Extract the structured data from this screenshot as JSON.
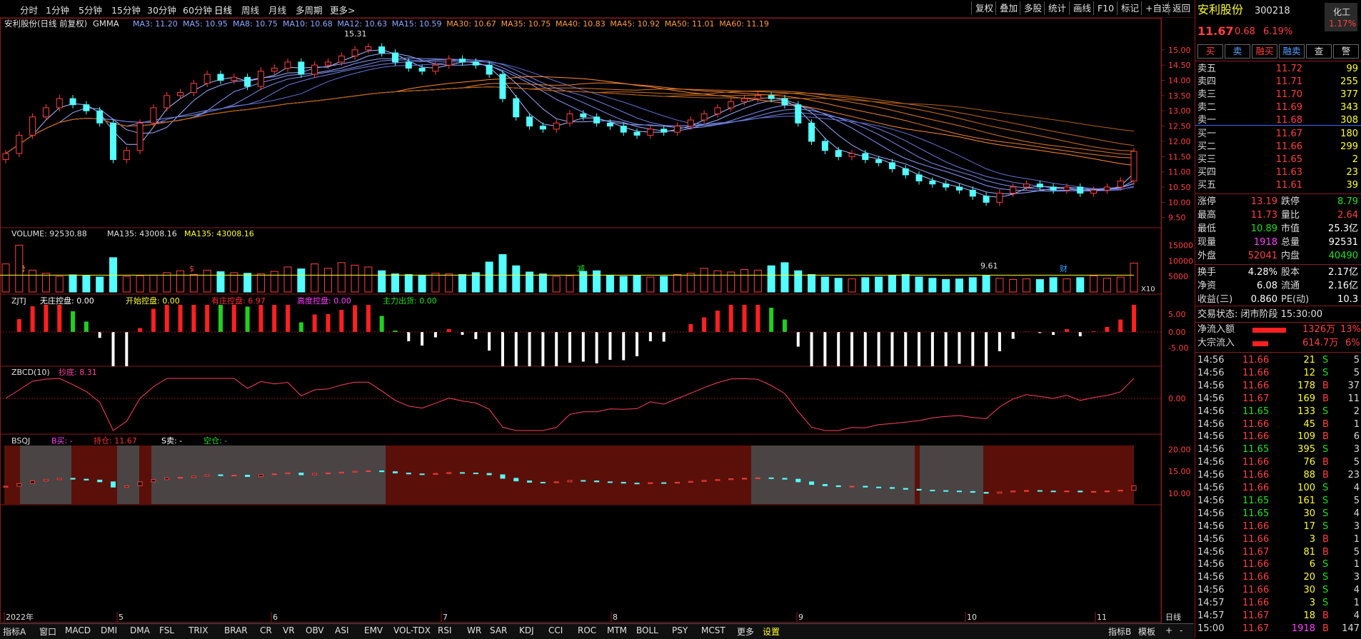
{
  "toolbar": {
    "periods": [
      "分时",
      "1分钟",
      "5分钟",
      "15分钟",
      "30分钟",
      "60分钟",
      "日线",
      "周线",
      "月线",
      "多周期",
      "更多>"
    ],
    "right_buttons": [
      "复权",
      "叠加",
      "多股",
      "统计",
      "画线",
      "F10",
      "标记",
      "+自选",
      "返回"
    ]
  },
  "main_panel": {
    "title": "安利股份(日线 前复权)",
    "indicator": "GMMA",
    "ma_labels": [
      "MA3: 11.20",
      "MA5: 10.95",
      "MA8: 10.75",
      "MA10: 10.68",
      "MA12: 10.63",
      "MA15: 10.59",
      "MA30: 10.67",
      "MA35: 10.75",
      "MA40: 10.83",
      "MA45: 10.92",
      "MA50: 11.01",
      "MA60: 11.19"
    ],
    "high_marker": "15.31",
    "low_marker": "9.61",
    "markers": [
      "榜",
      "$",
      "减",
      "财"
    ],
    "y_ticks": [
      "15.00",
      "14.50",
      "14.00",
      "13.50",
      "13.00",
      "12.50",
      "12.00",
      "11.50",
      "11.00",
      "10.50",
      "10.00",
      "9.50"
    ]
  },
  "volume_panel": {
    "title": "VOLUME: 92530.88",
    "ma1": "MA135: 43008.16",
    "ma2": "MA135: 43008.16",
    "y_ticks": [
      "15000",
      "10000",
      "5000"
    ],
    "unit": "X10"
  },
  "zjtj_panel": {
    "title": "ZJTJ",
    "labels": [
      {
        "text": "无庄控盘: 0.00",
        "color": "#ffffff"
      },
      {
        "text": "开始控盘: 0.00",
        "color": "#ffff30"
      },
      {
        "text": "有庄控盘: 6.97",
        "color": "#ff3030"
      },
      {
        "text": "高度控盘: 0.00",
        "color": "#ff40ff"
      },
      {
        "text": "主力出货: 0.00",
        "color": "#20e020"
      }
    ],
    "y_ticks": [
      "5.00",
      "0.00",
      "-5.00"
    ]
  },
  "zbcd_panel": {
    "title": "ZBCD(10)",
    "label": "抄底: 8.31",
    "y_ticks": [
      "0.00"
    ]
  },
  "bsqj_panel": {
    "title": "BSQJ",
    "labels": [
      {
        "text": "B买: -",
        "color": "#ff40ff"
      },
      {
        "text": "持仓: 11.67",
        "color": "#ff3030"
      },
      {
        "text": "S卖: -",
        "color": "#ffffff"
      },
      {
        "text": "空仓: -",
        "color": "#20e020"
      }
    ],
    "y_ticks": [
      "20.00",
      "15.00",
      "10.00"
    ]
  },
  "date_axis": {
    "labels": [
      "2022年",
      "5",
      "6",
      "7",
      "8",
      "9",
      "10",
      "11"
    ],
    "right": "日线"
  },
  "bottom_tabs": [
    "指标A",
    "窗口",
    "MACD",
    "DMI",
    "DMA",
    "FSL",
    "TRIX",
    "BRAR",
    "CR",
    "VR",
    "OBV",
    "ASI",
    "EMV",
    "VOL-TDX",
    "RSI",
    "WR",
    "SAR",
    "KDJ",
    "CCI",
    "ROC",
    "MTM",
    "BOLL",
    "PSY",
    "MCST",
    "更多",
    "设置"
  ],
  "bottom_right": [
    "指标B",
    "模板",
    "+",
    "-"
  ],
  "quote": {
    "name": "安利股份",
    "code": "300218",
    "sector": "化工",
    "sector_pct": "1.17%",
    "price": "11.67",
    "change": "0.68",
    "pct": "6.19%",
    "trade_buttons": [
      "买",
      "卖",
      "融买",
      "融卖",
      "查",
      "警"
    ],
    "asks": [
      {
        "label": "卖五",
        "price": "11.72",
        "vol": "99"
      },
      {
        "label": "卖四",
        "price": "11.71",
        "vol": "255"
      },
      {
        "label": "卖三",
        "price": "11.70",
        "vol": "377"
      },
      {
        "label": "卖二",
        "price": "11.69",
        "vol": "343"
      },
      {
        "label": "卖一",
        "price": "11.68",
        "vol": "308"
      }
    ],
    "bids": [
      {
        "label": "买一",
        "price": "11.67",
        "vol": "180"
      },
      {
        "label": "买二",
        "price": "11.66",
        "vol": "299"
      },
      {
        "label": "买三",
        "price": "11.65",
        "vol": "2"
      },
      {
        "label": "买四",
        "price": "11.63",
        "vol": "23"
      },
      {
        "label": "买五",
        "price": "11.61",
        "vol": "39"
      }
    ],
    "stats": [
      [
        {
          "l": "涨停",
          "v": "13.19",
          "c": "red"
        },
        {
          "l": "跌停",
          "v": "8.79",
          "c": "grn"
        }
      ],
      [
        {
          "l": "最高",
          "v": "11.73",
          "c": "red"
        },
        {
          "l": "量比",
          "v": "2.64",
          "c": "red"
        }
      ],
      [
        {
          "l": "最低",
          "v": "10.89",
          "c": "grn"
        },
        {
          "l": "市值",
          "v": "25.3亿",
          "c": "wht"
        }
      ],
      [
        {
          "l": "现量",
          "v": "1918",
          "c": "mag"
        },
        {
          "l": "总量",
          "v": "92531",
          "c": "wht"
        }
      ],
      [
        {
          "l": "外盘",
          "v": "52041",
          "c": "red"
        },
        {
          "l": "内盘",
          "v": "40490",
          "c": "grn"
        }
      ]
    ],
    "stats2": [
      [
        {
          "l": "换手",
          "v": "4.28%",
          "c": "wht"
        },
        {
          "l": "股本",
          "v": "2.17亿",
          "c": "wht"
        }
      ],
      [
        {
          "l": "净资",
          "v": "6.08",
          "c": "wht"
        },
        {
          "l": "流通",
          "v": "2.16亿",
          "c": "wht"
        }
      ],
      [
        {
          "l": "收益(三)",
          "v": "0.860",
          "c": "wht"
        },
        {
          "l": "PE(动)",
          "v": "10.3",
          "c": "wht"
        }
      ]
    ],
    "trade_status": "交易状态: 闭市阶段 15:30:00",
    "net_inflow_label": "净流入额",
    "net_inflow": "1326万",
    "net_inflow_pct": "13%",
    "net_inflow_bar": 0.13,
    "block_label": "大宗流入",
    "block_inflow": "614.7万",
    "block_pct": "6%",
    "block_bar": 0.06,
    "ticks": [
      [
        "14:56",
        "11.66",
        "21",
        "S",
        "5"
      ],
      [
        "14:56",
        "11.66",
        "12",
        "S",
        "5"
      ],
      [
        "14:56",
        "11.66",
        "178",
        "B",
        "37"
      ],
      [
        "14:56",
        "11.67",
        "169",
        "B",
        "11"
      ],
      [
        "14:56",
        "11.65",
        "133",
        "S",
        "2"
      ],
      [
        "14:56",
        "11.66",
        "45",
        "B",
        "1"
      ],
      [
        "14:56",
        "11.66",
        "109",
        "B",
        "6"
      ],
      [
        "14:56",
        "11.65",
        "395",
        "S",
        "3"
      ],
      [
        "14:56",
        "11.66",
        "76",
        "B",
        "5"
      ],
      [
        "14:56",
        "11.66",
        "88",
        "B",
        "23"
      ],
      [
        "14:56",
        "11.66",
        "100",
        "S",
        "4"
      ],
      [
        "14:56",
        "11.65",
        "161",
        "S",
        "5"
      ],
      [
        "14:56",
        "11.65",
        "30",
        "S",
        "4"
      ],
      [
        "14:56",
        "11.66",
        "17",
        "S",
        "3"
      ],
      [
        "14:56",
        "11.66",
        "3",
        "B",
        "1"
      ],
      [
        "14:56",
        "11.67",
        "81",
        "B",
        "5"
      ],
      [
        "14:56",
        "11.66",
        "6",
        "S",
        "1"
      ],
      [
        "14:56",
        "11.66",
        "20",
        "S",
        "3"
      ],
      [
        "14:56",
        "11.66",
        "30",
        "S",
        "4"
      ],
      [
        "14:57",
        "11.66",
        "3",
        "S",
        "1"
      ],
      [
        "14:57",
        "11.67",
        "18",
        "B",
        "4"
      ],
      [
        "15:00",
        "11.67",
        "1918",
        "B",
        "147"
      ]
    ]
  },
  "chart_data": {
    "type": "candlestick",
    "xlabel": "",
    "ylabel": "",
    "ylim": [
      9.4,
      15.3
    ],
    "dates": [
      "2022年",
      "5",
      "6",
      "7",
      "8",
      "9",
      "10",
      "11"
    ],
    "close": [
      11.6,
      12.2,
      12.8,
      13.1,
      13.4,
      13.2,
      13.0,
      12.6,
      11.4,
      11.7,
      12.6,
      13.1,
      13.5,
      13.6,
      13.9,
      14.2,
      14.0,
      14.1,
      13.8,
      14.3,
      14.4,
      14.6,
      14.2,
      14.5,
      14.6,
      14.8,
      15.0,
      15.1,
      14.9,
      14.6,
      14.4,
      14.3,
      14.5,
      14.7,
      14.6,
      14.5,
      14.2,
      13.4,
      12.8,
      12.5,
      12.4,
      12.6,
      12.9,
      12.8,
      12.6,
      12.5,
      12.3,
      12.2,
      12.4,
      12.3,
      12.5,
      12.7,
      12.9,
      13.1,
      13.3,
      13.4,
      13.5,
      13.4,
      13.2,
      12.6,
      12.0,
      11.7,
      11.5,
      11.6,
      11.4,
      11.3,
      11.1,
      10.9,
      10.7,
      10.6,
      10.5,
      10.4,
      10.2,
      10.0,
      10.3,
      10.5,
      10.6,
      10.5,
      10.4,
      10.5,
      10.3,
      10.4,
      10.5,
      10.7,
      11.67
    ],
    "volume": [
      9000,
      15000,
      7000,
      6000,
      5000,
      5500,
      5200,
      4800,
      11000,
      5000,
      5200,
      5400,
      6200,
      6800,
      5600,
      7000,
      6500,
      6200,
      6000,
      5800,
      6600,
      8000,
      7400,
      9000,
      7600,
      9400,
      8600,
      8000,
      6800,
      5800,
      5600,
      5400,
      6000,
      5800,
      5600,
      6200,
      9600,
      12000,
      8400,
      6400,
      5800,
      5000,
      5200,
      6600,
      6800,
      5400,
      5000,
      5200,
      4800,
      5000,
      5600,
      6000,
      7600,
      6800,
      6400,
      7200,
      7000,
      8400,
      9400,
      6800,
      5600,
      4800,
      4400,
      4200,
      4600,
      4800,
      5400,
      5600,
      4800,
      4400,
      4000,
      4200,
      4600,
      5200,
      4400,
      4000,
      4200,
      4000,
      4600,
      4200,
      4600,
      5200,
      4400,
      4800,
      9253
    ]
  }
}
